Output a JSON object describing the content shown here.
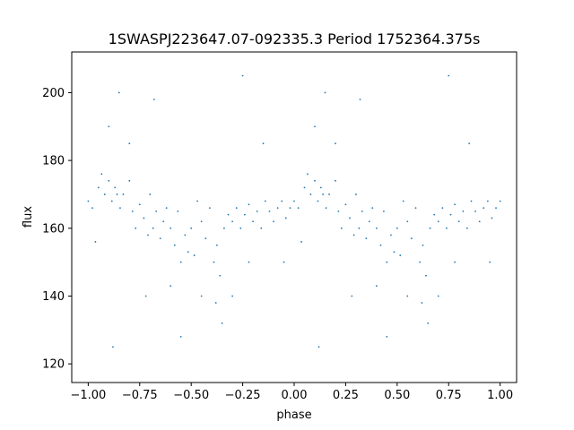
{
  "chart_data": {
    "type": "scatter",
    "title": "1SWASPJ223647.07-092335.3 Period 1752364.375s",
    "xlabel": "phase",
    "ylabel": "flux",
    "xlim": [
      -1.08,
      1.08
    ],
    "ylim": [
      114.5,
      212
    ],
    "x_ticks": [
      -1.0,
      -0.75,
      -0.5,
      -0.25,
      0.0,
      0.25,
      0.5,
      0.75,
      1.0
    ],
    "x_tick_labels": [
      "−1.00",
      "−0.75",
      "−0.50",
      "−0.25",
      "0.00",
      "0.25",
      "0.50",
      "0.75",
      "1.00"
    ],
    "y_ticks": [
      120,
      140,
      160,
      180,
      200
    ],
    "y_tick_labels": [
      "120",
      "140",
      "160",
      "180",
      "200"
    ],
    "grid": false,
    "legend": "none",
    "marker_color": "#1f77b4",
    "marker": "small dot",
    "series": [
      {
        "points": [
          [
            -1.0,
            168
          ],
          [
            -0.98,
            166
          ],
          [
            -0.965,
            156
          ],
          [
            -0.95,
            172
          ],
          [
            -0.935,
            176
          ],
          [
            -0.92,
            170
          ],
          [
            -0.9,
            174
          ],
          [
            -0.885,
            168
          ],
          [
            -0.87,
            172
          ],
          [
            -0.86,
            170
          ],
          [
            -0.845,
            166
          ],
          [
            -0.83,
            170
          ],
          [
            -0.8,
            174
          ],
          [
            -0.785,
            165
          ],
          [
            -0.77,
            160
          ],
          [
            -0.75,
            167
          ],
          [
            -0.73,
            163
          ],
          [
            -0.71,
            158
          ],
          [
            -0.7,
            170
          ],
          [
            -0.685,
            160
          ],
          [
            -0.67,
            165
          ],
          [
            -0.65,
            157
          ],
          [
            -0.635,
            162
          ],
          [
            -0.62,
            166
          ],
          [
            -0.6,
            160
          ],
          [
            -0.58,
            155
          ],
          [
            -0.565,
            165
          ],
          [
            -0.55,
            150
          ],
          [
            -0.53,
            158
          ],
          [
            -0.515,
            153
          ],
          [
            -0.5,
            160
          ],
          [
            -0.485,
            152
          ],
          [
            -0.47,
            168
          ],
          [
            -0.45,
            162
          ],
          [
            -0.43,
            157
          ],
          [
            -0.41,
            166
          ],
          [
            -0.39,
            150
          ],
          [
            -0.375,
            155
          ],
          [
            -0.36,
            146
          ],
          [
            -0.34,
            160
          ],
          [
            -0.32,
            164
          ],
          [
            -0.3,
            162
          ],
          [
            -0.28,
            166
          ],
          [
            -0.26,
            160
          ],
          [
            -0.24,
            164
          ],
          [
            -0.22,
            167
          ],
          [
            -0.2,
            162
          ],
          [
            -0.18,
            165
          ],
          [
            -0.16,
            160
          ],
          [
            -0.14,
            168
          ],
          [
            -0.12,
            165
          ],
          [
            -0.1,
            162
          ],
          [
            -0.08,
            166
          ],
          [
            -0.06,
            168
          ],
          [
            -0.04,
            163
          ],
          [
            -0.02,
            166
          ],
          [
            0.0,
            168
          ],
          [
            0.02,
            166
          ],
          [
            0.035,
            156
          ],
          [
            0.05,
            172
          ],
          [
            0.065,
            176
          ],
          [
            0.08,
            170
          ],
          [
            0.1,
            174
          ],
          [
            0.115,
            168
          ],
          [
            0.13,
            172
          ],
          [
            0.14,
            170
          ],
          [
            0.155,
            166
          ],
          [
            0.17,
            170
          ],
          [
            0.2,
            174
          ],
          [
            0.215,
            165
          ],
          [
            0.23,
            160
          ],
          [
            0.25,
            167
          ],
          [
            0.27,
            163
          ],
          [
            0.29,
            158
          ],
          [
            0.3,
            170
          ],
          [
            0.315,
            160
          ],
          [
            0.33,
            165
          ],
          [
            0.35,
            157
          ],
          [
            0.365,
            162
          ],
          [
            0.38,
            166
          ],
          [
            0.4,
            160
          ],
          [
            0.42,
            155
          ],
          [
            0.435,
            165
          ],
          [
            0.45,
            150
          ],
          [
            0.47,
            158
          ],
          [
            0.485,
            153
          ],
          [
            0.5,
            160
          ],
          [
            0.515,
            152
          ],
          [
            0.53,
            168
          ],
          [
            0.55,
            162
          ],
          [
            0.57,
            157
          ],
          [
            0.59,
            166
          ],
          [
            0.61,
            150
          ],
          [
            0.625,
            155
          ],
          [
            0.64,
            146
          ],
          [
            0.66,
            160
          ],
          [
            0.68,
            164
          ],
          [
            0.7,
            162
          ],
          [
            0.72,
            166
          ],
          [
            0.74,
            160
          ],
          [
            0.76,
            164
          ],
          [
            0.78,
            167
          ],
          [
            0.8,
            162
          ],
          [
            0.82,
            165
          ],
          [
            0.84,
            160
          ],
          [
            0.86,
            168
          ],
          [
            0.88,
            165
          ],
          [
            0.9,
            162
          ],
          [
            0.92,
            166
          ],
          [
            0.94,
            168
          ],
          [
            0.96,
            163
          ],
          [
            0.98,
            166
          ],
          [
            1.0,
            168
          ],
          [
            -0.9,
            190
          ],
          [
            -0.85,
            200
          ],
          [
            -0.8,
            185
          ],
          [
            -0.72,
            140
          ],
          [
            -0.6,
            143
          ],
          [
            -0.45,
            140
          ],
          [
            -0.38,
            138
          ],
          [
            -0.3,
            140
          ],
          [
            -0.22,
            150
          ],
          [
            -0.15,
            185
          ],
          [
            -0.05,
            150
          ],
          [
            0.1,
            190
          ],
          [
            0.15,
            200
          ],
          [
            0.2,
            185
          ],
          [
            0.28,
            140
          ],
          [
            0.4,
            143
          ],
          [
            0.55,
            140
          ],
          [
            0.62,
            138
          ],
          [
            0.7,
            140
          ],
          [
            0.78,
            150
          ],
          [
            0.85,
            185
          ],
          [
            0.95,
            150
          ],
          [
            -0.88,
            125
          ],
          [
            -0.55,
            128
          ],
          [
            -0.25,
            205
          ],
          [
            0.12,
            125
          ],
          [
            0.45,
            128
          ],
          [
            0.75,
            205
          ],
          [
            -0.68,
            198
          ],
          [
            0.32,
            198
          ],
          [
            -0.35,
            132
          ],
          [
            0.65,
            132
          ]
        ]
      }
    ]
  }
}
